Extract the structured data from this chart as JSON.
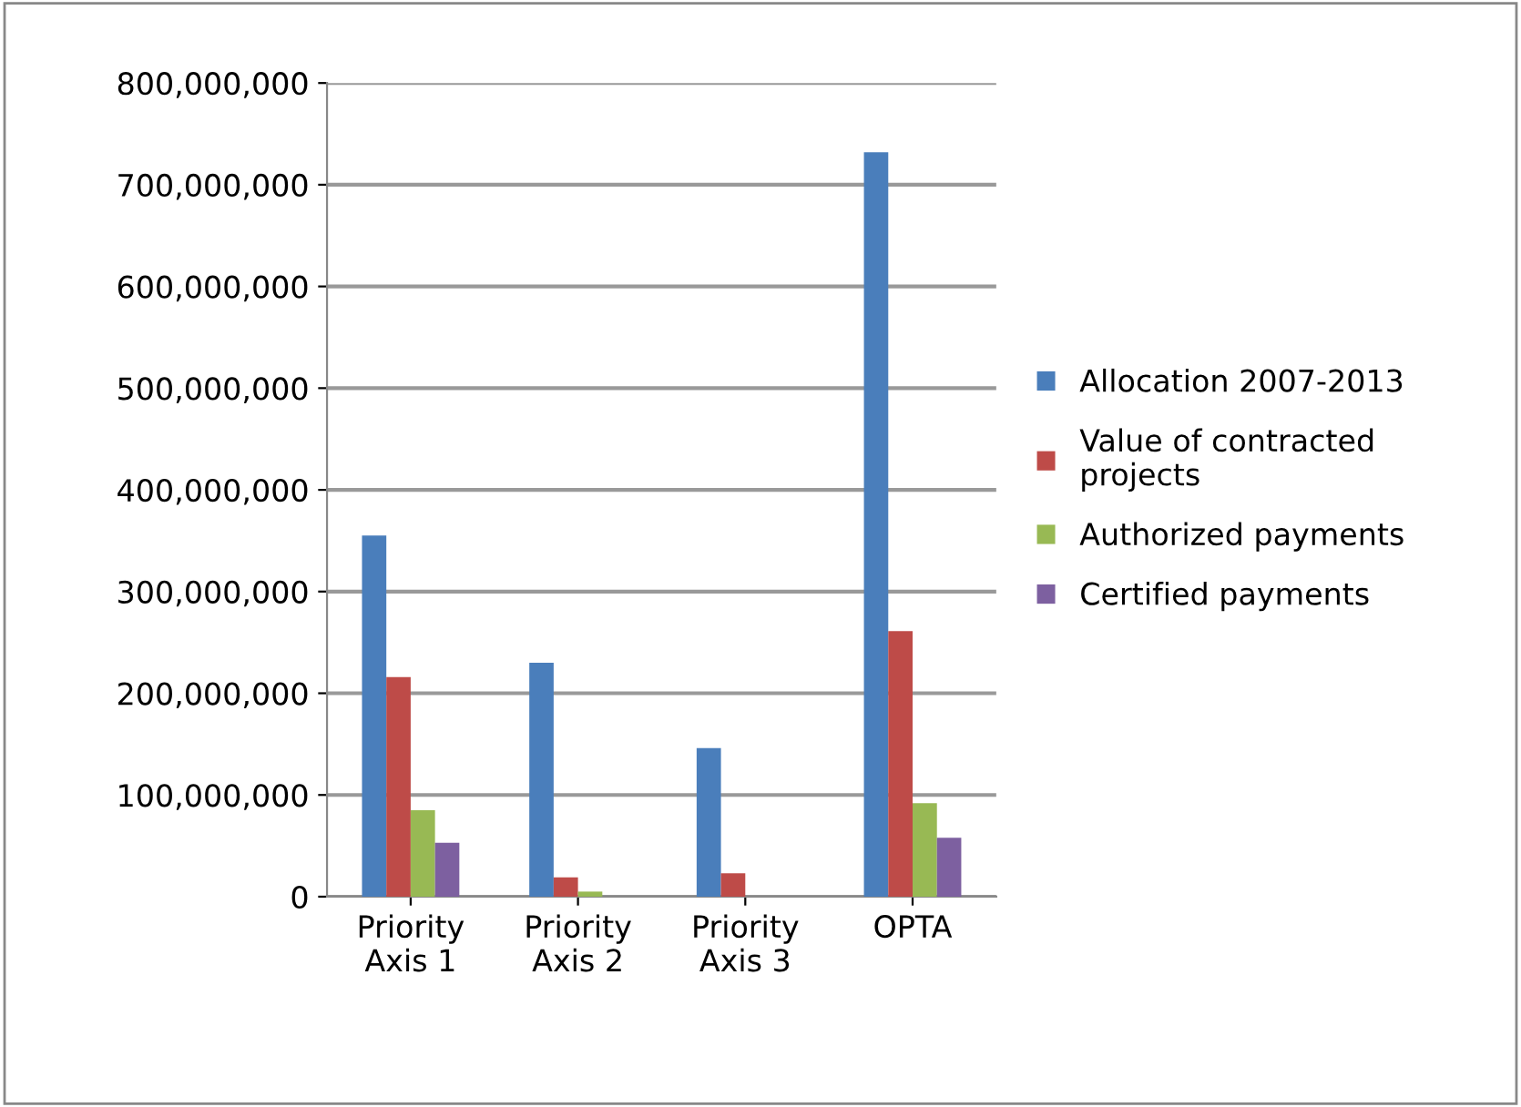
{
  "chart_data": {
    "type": "bar",
    "categories": [
      "Priority\nAxis 1",
      "Priority\nAxis 2",
      "Priority\nAxis 3",
      "OPTA"
    ],
    "series": [
      {
        "name": "Allocation 2007-2013",
        "color": "#4a7ebb",
        "values": [
          355000000,
          230000000,
          146000000,
          732000000
        ]
      },
      {
        "name": "Value of contracted\nprojects",
        "color": "#be4b48",
        "values": [
          216000000,
          19000000,
          23000000,
          261000000
        ]
      },
      {
        "name": "Authorized payments",
        "color": "#98b954",
        "values": [
          85000000,
          5000000,
          null,
          92000000
        ]
      },
      {
        "name": "Certified payments",
        "color": "#7d60a0",
        "values": [
          53000000,
          null,
          null,
          58000000
        ]
      }
    ],
    "ylim": [
      0,
      800000000
    ],
    "yticks": [
      {
        "value": 0,
        "label": "0"
      },
      {
        "value": 100000000,
        "label": "100,000,000"
      },
      {
        "value": 200000000,
        "label": "200,000,000"
      },
      {
        "value": 300000000,
        "label": "300,000,000"
      },
      {
        "value": 400000000,
        "label": "400,000,000"
      },
      {
        "value": 500000000,
        "label": "500,000,000"
      },
      {
        "value": 600000000,
        "label": "600,000,000"
      },
      {
        "value": 700000000,
        "label": "700,000,000"
      },
      {
        "value": 800000000,
        "label": "800,000,000"
      }
    ],
    "grid": "y",
    "legend": "right"
  }
}
